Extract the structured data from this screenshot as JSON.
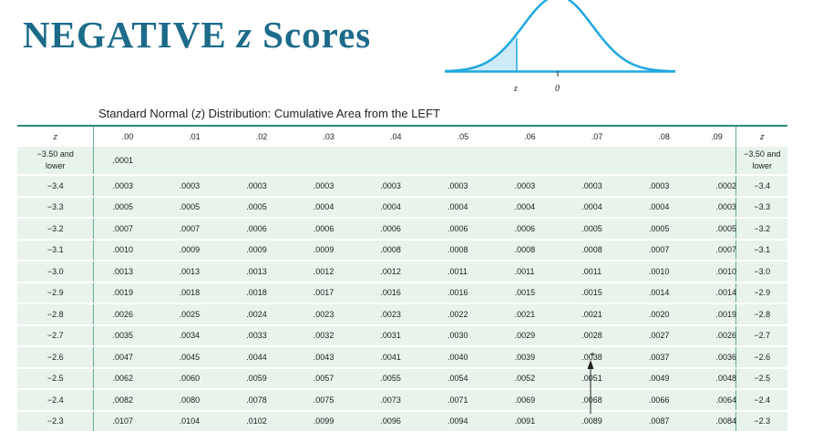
{
  "title": {
    "word1": "NEGATIVE",
    "zvar": "z",
    "word2": "Scores"
  },
  "curve": {
    "z_label": "z",
    "zero_label": "0",
    "line_color": "#1ea8e0",
    "fill_color": "#cfeaf7"
  },
  "caption": {
    "before": "Standard Normal (",
    "zvar": "z",
    "after": ") Distribution: Cumulative Area from the LEFT"
  },
  "table": {
    "z_header": "z",
    "columns": [
      ".00",
      ".01",
      ".02",
      ".03",
      ".04",
      ".05",
      ".06",
      ".07",
      ".08",
      ".09"
    ],
    "first_row": {
      "z_line1": "−3.50 and",
      "z_line2": "lower",
      "value": ".0001"
    },
    "rows": [
      {
        "z": "−3.4",
        "values": [
          ".0003",
          ".0003",
          ".0003",
          ".0003",
          ".0003",
          ".0003",
          ".0003",
          ".0003",
          ".0003",
          ".0002"
        ]
      },
      {
        "z": "−3.3",
        "values": [
          ".0005",
          ".0005",
          ".0005",
          ".0004",
          ".0004",
          ".0004",
          ".0004",
          ".0004",
          ".0004",
          ".0003"
        ]
      },
      {
        "z": "−3.2",
        "values": [
          ".0007",
          ".0007",
          ".0006",
          ".0006",
          ".0006",
          ".0006",
          ".0006",
          ".0005",
          ".0005",
          ".0005"
        ]
      },
      {
        "z": "−3.1",
        "values": [
          ".0010",
          ".0009",
          ".0009",
          ".0009",
          ".0008",
          ".0008",
          ".0008",
          ".0008",
          ".0007",
          ".0007"
        ]
      },
      {
        "z": "−3.0",
        "values": [
          ".0013",
          ".0013",
          ".0013",
          ".0012",
          ".0012",
          ".0011",
          ".0011",
          ".0011",
          ".0010",
          ".0010"
        ]
      },
      {
        "z": "−2.9",
        "values": [
          ".0019",
          ".0018",
          ".0018",
          ".0017",
          ".0016",
          ".0016",
          ".0015",
          ".0015",
          ".0014",
          ".0014"
        ]
      },
      {
        "z": "−2.8",
        "values": [
          ".0026",
          ".0025",
          ".0024",
          ".0023",
          ".0023",
          ".0022",
          ".0021",
          ".0021",
          ".0020",
          ".0019"
        ]
      },
      {
        "z": "−2.7",
        "values": [
          ".0035",
          ".0034",
          ".0033",
          ".0032",
          ".0031",
          ".0030",
          ".0029",
          ".0028",
          ".0027",
          ".0026"
        ]
      },
      {
        "z": "−2.6",
        "values": [
          ".0047",
          ".0045",
          ".0044",
          ".0043",
          ".0041",
          ".0040",
          ".0039",
          ".0038",
          ".0037",
          ".0036"
        ]
      },
      {
        "z": "−2.5",
        "values": [
          ".0062",
          ".0060",
          ".0059",
          ".0057",
          ".0055",
          ".0054",
          ".0052",
          ".0051",
          ".0049",
          ".0048"
        ]
      },
      {
        "z": "−2.4",
        "values": [
          ".0082",
          ".0080",
          ".0078",
          ".0075",
          ".0073",
          ".0071",
          ".0069",
          ".0068",
          ".0066",
          ".0064"
        ]
      },
      {
        "z": "−2.3",
        "values": [
          ".0107",
          ".0104",
          ".0102",
          ".0099",
          ".0096",
          ".0094",
          ".0091",
          ".0089",
          ".0087",
          ".0084"
        ]
      }
    ]
  },
  "annotation": {
    "asterisk": "*"
  },
  "colors": {
    "title": "#1d6b8a",
    "row_bg": "#e8f3ec",
    "rule": "#2f8a78"
  }
}
